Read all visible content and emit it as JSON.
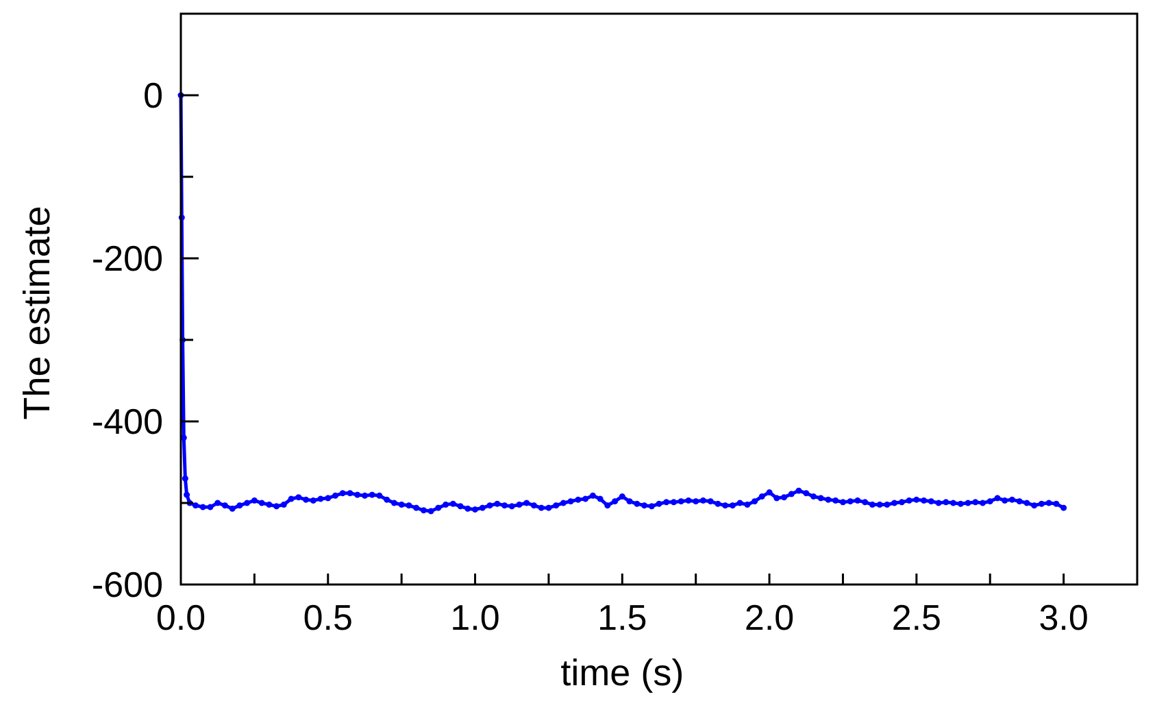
{
  "chart_data": {
    "type": "line",
    "title": "",
    "xlabel": "time (s)",
    "ylabel": "The estimate",
    "xlim": [
      0.0,
      3.25
    ],
    "ylim": [
      -600,
      100
    ],
    "x_ticks": [
      "0.0",
      "0.5",
      "1.0",
      "1.5",
      "2.0",
      "2.5",
      "3.0"
    ],
    "y_ticks": [
      "0",
      "-200",
      "-400",
      "-600"
    ],
    "grid": false,
    "legend": "none",
    "series": [
      {
        "color": "#0000ff",
        "points": [
          [
            0.0,
            0
          ],
          [
            0.003,
            -150
          ],
          [
            0.006,
            -300
          ],
          [
            0.01,
            -420
          ],
          [
            0.015,
            -470
          ],
          [
            0.02,
            -490
          ],
          [
            0.03,
            -500
          ],
          [
            0.05,
            -503
          ],
          [
            0.075,
            -505
          ],
          [
            0.1,
            -505
          ],
          [
            0.125,
            -500
          ],
          [
            0.15,
            -503
          ],
          [
            0.175,
            -507
          ],
          [
            0.2,
            -503
          ],
          [
            0.225,
            -500
          ],
          [
            0.25,
            -497
          ],
          [
            0.275,
            -500
          ],
          [
            0.3,
            -502
          ],
          [
            0.325,
            -504
          ],
          [
            0.35,
            -502
          ],
          [
            0.375,
            -495
          ],
          [
            0.4,
            -493
          ],
          [
            0.425,
            -496
          ],
          [
            0.45,
            -497
          ],
          [
            0.475,
            -495
          ],
          [
            0.5,
            -494
          ],
          [
            0.525,
            -491
          ],
          [
            0.55,
            -488
          ],
          [
            0.575,
            -488
          ],
          [
            0.6,
            -490
          ],
          [
            0.625,
            -491
          ],
          [
            0.65,
            -490
          ],
          [
            0.675,
            -491
          ],
          [
            0.7,
            -496
          ],
          [
            0.725,
            -500
          ],
          [
            0.75,
            -502
          ],
          [
            0.775,
            -503
          ],
          [
            0.8,
            -506
          ],
          [
            0.825,
            -509
          ],
          [
            0.85,
            -510
          ],
          [
            0.875,
            -506
          ],
          [
            0.9,
            -502
          ],
          [
            0.925,
            -501
          ],
          [
            0.95,
            -504
          ],
          [
            0.975,
            -507
          ],
          [
            1.0,
            -508
          ],
          [
            1.025,
            -506
          ],
          [
            1.05,
            -503
          ],
          [
            1.075,
            -501
          ],
          [
            1.1,
            -503
          ],
          [
            1.125,
            -504
          ],
          [
            1.15,
            -502
          ],
          [
            1.175,
            -500
          ],
          [
            1.2,
            -503
          ],
          [
            1.225,
            -506
          ],
          [
            1.25,
            -506
          ],
          [
            1.275,
            -503
          ],
          [
            1.3,
            -500
          ],
          [
            1.325,
            -498
          ],
          [
            1.35,
            -496
          ],
          [
            1.375,
            -495
          ],
          [
            1.4,
            -491
          ],
          [
            1.425,
            -495
          ],
          [
            1.45,
            -503
          ],
          [
            1.475,
            -498
          ],
          [
            1.5,
            -492
          ],
          [
            1.525,
            -498
          ],
          [
            1.55,
            -501
          ],
          [
            1.575,
            -503
          ],
          [
            1.6,
            -504
          ],
          [
            1.625,
            -501
          ],
          [
            1.65,
            -499
          ],
          [
            1.675,
            -499
          ],
          [
            1.7,
            -498
          ],
          [
            1.725,
            -497
          ],
          [
            1.75,
            -498
          ],
          [
            1.775,
            -497
          ],
          [
            1.8,
            -498
          ],
          [
            1.825,
            -501
          ],
          [
            1.85,
            -503
          ],
          [
            1.875,
            -503
          ],
          [
            1.9,
            -500
          ],
          [
            1.925,
            -502
          ],
          [
            1.95,
            -498
          ],
          [
            1.975,
            -492
          ],
          [
            2.0,
            -487
          ],
          [
            2.025,
            -494
          ],
          [
            2.05,
            -493
          ],
          [
            2.075,
            -489
          ],
          [
            2.1,
            -485
          ],
          [
            2.125,
            -488
          ],
          [
            2.15,
            -492
          ],
          [
            2.175,
            -494
          ],
          [
            2.2,
            -496
          ],
          [
            2.225,
            -497
          ],
          [
            2.25,
            -499
          ],
          [
            2.275,
            -498
          ],
          [
            2.3,
            -497
          ],
          [
            2.325,
            -499
          ],
          [
            2.35,
            -502
          ],
          [
            2.375,
            -502
          ],
          [
            2.4,
            -502
          ],
          [
            2.425,
            -500
          ],
          [
            2.45,
            -499
          ],
          [
            2.475,
            -497
          ],
          [
            2.5,
            -496
          ],
          [
            2.525,
            -497
          ],
          [
            2.55,
            -498
          ],
          [
            2.575,
            -500
          ],
          [
            2.6,
            -499
          ],
          [
            2.625,
            -500
          ],
          [
            2.65,
            -501
          ],
          [
            2.675,
            -500
          ],
          [
            2.7,
            -499
          ],
          [
            2.725,
            -500
          ],
          [
            2.75,
            -498
          ],
          [
            2.775,
            -494
          ],
          [
            2.8,
            -497
          ],
          [
            2.825,
            -496
          ],
          [
            2.85,
            -498
          ],
          [
            2.875,
            -500
          ],
          [
            2.9,
            -503
          ],
          [
            2.925,
            -501
          ],
          [
            2.95,
            -500
          ],
          [
            2.975,
            -501
          ],
          [
            3.0,
            -506
          ]
        ]
      }
    ]
  }
}
